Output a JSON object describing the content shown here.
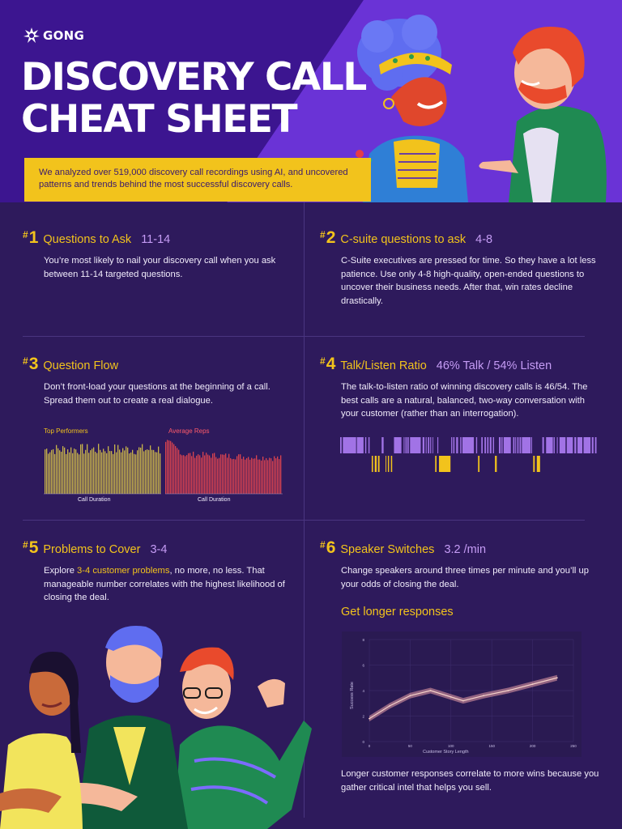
{
  "brand": {
    "logo_text": "GONG"
  },
  "header": {
    "title_line1": "DISCOVERY CALL",
    "title_line2": "CHEAT SHEET",
    "intro": "We analyzed over 519,000 discovery call recordings using AI, and uncovered patterns and trends behind the most successful discovery calls."
  },
  "colors": {
    "background": "#2e1a5c",
    "header": "#3c1590",
    "accent_yellow": "#f2c31c",
    "accent_purple": "#c59cf5",
    "top_performers": "#c8b44a",
    "average_reps": "#d9434f"
  },
  "items": [
    {
      "num": "1",
      "title": "Questions to Ask",
      "stat": "11-14",
      "body": "You’re most likely to nail your discovery call when you ask between 11-14 targeted questions."
    },
    {
      "num": "2",
      "title": "C-suite questions to ask",
      "stat": "4-8",
      "body": "C-Suite executives are pressed for time. So they have a lot less patience. Use only 4-8 high-quality, open-ended questions to uncover their business needs. After that, win rates decline drastically."
    },
    {
      "num": "3",
      "title": "Question Flow",
      "stat": "",
      "body": "Don’t front-load your questions at the beginning of a call. Spread them out to create a real dialogue."
    },
    {
      "num": "4",
      "title": "Talk/Listen Ratio",
      "stat": "46% Talk / 54% Listen",
      "body": "The talk-to-listen ratio of winning discovery calls is 46/54. The best calls are a natural, balanced, two-way conversation with your customer (rather than an interrogation)."
    },
    {
      "num": "5",
      "title": "Problems to Cover",
      "stat": "3-4",
      "body_pre": "Explore ",
      "body_highlight": "3-4 customer problems",
      "body_post": ", no more, no less. That manageable number correlates with the highest likelihood of closing the deal."
    },
    {
      "num": "6",
      "title": "Speaker Switches",
      "stat": "3.2 /min",
      "body": "Change speakers around three times per minute and you’ll up your odds of closing the  deal."
    }
  ],
  "question_flow_chart": {
    "panels": [
      {
        "label": "Top Performers",
        "xlabel": "Call Duration"
      },
      {
        "label": "Average Reps",
        "xlabel": "Call Duration"
      }
    ]
  },
  "responses": {
    "title": "Get longer responses",
    "caption": "Longer customer responses correlate to more wins because you gather critical intel that helps you sell."
  },
  "chart_data": {
    "type": "line",
    "xlabel": "Customer Story Length",
    "ylabel": "Success Rate",
    "x_ticks": [
      "0",
      "50",
      "100",
      "150",
      "200",
      "250"
    ],
    "y_ticks": [
      "0",
      "2",
      "4",
      "6",
      "8"
    ],
    "xlim": [
      0,
      250
    ],
    "ylim": [
      0,
      8
    ],
    "grid": true,
    "x": [
      0,
      25,
      50,
      75,
      100,
      115,
      140,
      170,
      200,
      230
    ],
    "y": [
      1.8,
      2.8,
      3.6,
      4.0,
      3.5,
      3.2,
      3.6,
      4.0,
      4.5,
      5.0
    ]
  }
}
